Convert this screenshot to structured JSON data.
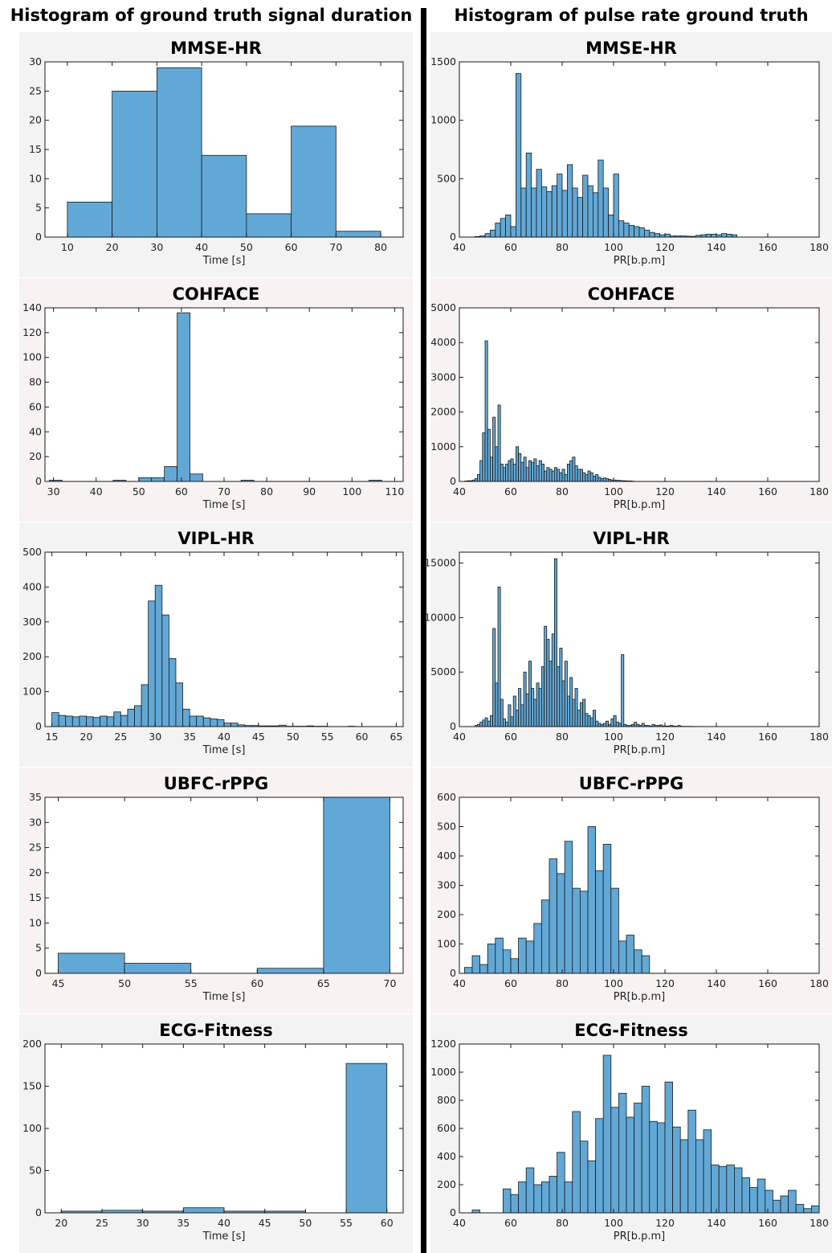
{
  "titles": {
    "left": "Histogram of ground truth signal duration",
    "right": "Histogram of pulse rate ground truth"
  },
  "colors": {
    "bar_fill": "#62a8d6",
    "bar_edge": "#1a1a1a",
    "axis": "#1a1a1a"
  },
  "chart_data": [
    {
      "type": "bar",
      "title": "MMSE-HR",
      "xlabel": "Time [s]",
      "ylabel": "",
      "xlim": [
        5,
        85
      ],
      "ylim": [
        0,
        30
      ],
      "xticks": [
        10,
        20,
        30,
        40,
        50,
        60,
        70,
        80
      ],
      "yticks": [
        0,
        5,
        10,
        15,
        20,
        25,
        30
      ],
      "bin_start": 10,
      "bin_width": 10,
      "values": [
        6,
        25,
        29,
        14,
        4,
        19,
        1
      ]
    },
    {
      "type": "bar",
      "title": "MMSE-HR",
      "xlabel": "PR[b.p.m]",
      "ylabel": "",
      "xlim": [
        40,
        180
      ],
      "ylim": [
        0,
        1500
      ],
      "xticks": [
        40,
        60,
        80,
        100,
        120,
        140,
        160,
        180
      ],
      "yticks": [
        0,
        500,
        1000,
        1500
      ],
      "bin_start": 46,
      "bin_width": 2,
      "values": [
        5,
        10,
        30,
        60,
        120,
        160,
        190,
        90,
        1400,
        420,
        720,
        420,
        580,
        430,
        390,
        440,
        540,
        400,
        620,
        420,
        340,
        530,
        440,
        380,
        660,
        420,
        190,
        540,
        140,
        120,
        100,
        90,
        80,
        60,
        40,
        30,
        20,
        25,
        10,
        10,
        10,
        8,
        6,
        15,
        20,
        25,
        25,
        20,
        30,
        25,
        20
      ]
    },
    {
      "type": "bar",
      "title": "COHFACE",
      "xlabel": "Time [s]",
      "ylabel": "",
      "xlim": [
        28,
        112
      ],
      "ylim": [
        0,
        140
      ],
      "xticks": [
        30,
        40,
        50,
        60,
        70,
        80,
        90,
        100,
        110
      ],
      "yticks": [
        0,
        20,
        40,
        60,
        80,
        100,
        120,
        140
      ],
      "bin_start": 29,
      "bin_width": 3,
      "values": [
        1,
        0,
        0,
        0,
        0,
        1,
        0,
        3,
        3,
        12,
        136,
        6,
        0,
        0,
        0,
        1,
        0,
        0,
        0,
        0,
        0,
        0,
        0,
        0,
        0,
        1
      ]
    },
    {
      "type": "bar",
      "title": "COHFACE",
      "xlabel": "PR[b.p.m]",
      "ylabel": "",
      "xlim": [
        40,
        180
      ],
      "ylim": [
        0,
        5000
      ],
      "xticks": [
        40,
        60,
        80,
        100,
        120,
        140,
        160,
        180
      ],
      "yticks": [
        0,
        1000,
        2000,
        3000,
        4000,
        5000
      ],
      "bin_start": 42,
      "bin_width": 1,
      "values": [
        10,
        20,
        20,
        40,
        80,
        200,
        600,
        1400,
        4050,
        1500,
        700,
        1850,
        1000,
        2200,
        500,
        400,
        500,
        600,
        650,
        500,
        1000,
        800,
        550,
        700,
        400,
        600,
        550,
        650,
        450,
        600,
        500,
        300,
        400,
        350,
        300,
        400,
        350,
        250,
        350,
        200,
        500,
        600,
        700,
        450,
        350,
        350,
        250,
        200,
        300,
        250,
        150,
        200,
        120,
        80,
        100,
        80,
        60,
        40,
        40,
        30,
        30,
        20,
        20,
        15,
        15,
        10
      ]
    },
    {
      "type": "bar",
      "title": "VIPL-HR",
      "xlabel": "Time [s]",
      "ylabel": "",
      "xlim": [
        14,
        66
      ],
      "ylim": [
        0,
        500
      ],
      "xticks": [
        15,
        20,
        25,
        30,
        35,
        40,
        45,
        50,
        55,
        60,
        65
      ],
      "yticks": [
        0,
        100,
        200,
        300,
        400,
        500
      ],
      "bin_start": 15,
      "bin_width": 1,
      "values": [
        40,
        32,
        30,
        28,
        30,
        28,
        26,
        30,
        28,
        42,
        32,
        50,
        60,
        120,
        360,
        405,
        320,
        195,
        125,
        50,
        30,
        30,
        25,
        22,
        20,
        10,
        10,
        5,
        3,
        3,
        2,
        2,
        2,
        4,
        1,
        1,
        1,
        2,
        1,
        1,
        0,
        0,
        0,
        1,
        0,
        0,
        0,
        0,
        0,
        0
      ]
    },
    {
      "type": "bar",
      "title": "VIPL-HR",
      "xlabel": "PR[b.p.m]",
      "ylabel": "",
      "xlim": [
        40,
        180
      ],
      "ylim": [
        0,
        16000
      ],
      "xticks": [
        40,
        60,
        80,
        100,
        120,
        140,
        160,
        180
      ],
      "yticks": [
        0,
        5000,
        10000,
        15000
      ],
      "bin_start": 46,
      "bin_width": 1,
      "values": [
        100,
        200,
        400,
        600,
        800,
        500,
        1000,
        9000,
        4000,
        12800,
        2500,
        700,
        400,
        2000,
        900,
        2800,
        1500,
        3500,
        2000,
        5000,
        3000,
        6000,
        3500,
        2500,
        4000,
        3500,
        5500,
        9200,
        8000,
        6000,
        8500,
        15400,
        5500,
        7200,
        4200,
        6000,
        2800,
        4500,
        2500,
        3500,
        1500,
        2200,
        2500,
        1200,
        1000,
        800,
        1500,
        500,
        300,
        200,
        300,
        500,
        200,
        700,
        1000,
        400,
        300,
        6600,
        200,
        100,
        100,
        200,
        400,
        200,
        100,
        300,
        100,
        100,
        50,
        200,
        100,
        100,
        150,
        50,
        50,
        50,
        100,
        50,
        30,
        100,
        30,
        20,
        20,
        20,
        20,
        10,
        10,
        10,
        10
      ]
    },
    {
      "type": "bar",
      "title": "UBFC-rPPG",
      "xlabel": "Time [s]",
      "ylabel": "",
      "xlim": [
        44,
        71
      ],
      "ylim": [
        0,
        35
      ],
      "xticks": [
        45,
        50,
        55,
        60,
        65,
        70
      ],
      "yticks": [
        0,
        5,
        10,
        15,
        20,
        25,
        30,
        35
      ],
      "bin_start": 45,
      "bin_width": 5,
      "values": [
        4,
        2,
        0,
        1,
        35
      ]
    },
    {
      "type": "bar",
      "title": "UBFC-rPPG",
      "xlabel": "PR[b.p.m]",
      "ylabel": "",
      "xlim": [
        40,
        180
      ],
      "ylim": [
        0,
        600
      ],
      "xticks": [
        40,
        60,
        80,
        100,
        120,
        140,
        160,
        180
      ],
      "yticks": [
        0,
        100,
        200,
        300,
        400,
        500,
        600
      ],
      "bin_start": 42,
      "bin_width": 3,
      "values": [
        20,
        60,
        30,
        100,
        120,
        80,
        50,
        120,
        110,
        170,
        250,
        390,
        340,
        450,
        290,
        280,
        500,
        350,
        440,
        290,
        110,
        130,
        80,
        60
      ]
    },
    {
      "type": "bar",
      "title": "ECG-Fitness",
      "xlabel": "Time [s]",
      "ylabel": "",
      "xlim": [
        18,
        62
      ],
      "ylim": [
        0,
        200
      ],
      "xticks": [
        20,
        25,
        30,
        35,
        40,
        45,
        50,
        55,
        60
      ],
      "yticks": [
        0,
        50,
        100,
        150,
        200
      ],
      "bin_start": 20,
      "bin_width": 5,
      "values": [
        2,
        3,
        2,
        6,
        2,
        2,
        0,
        177
      ]
    },
    {
      "type": "bar",
      "title": "ECG-Fitness",
      "xlabel": "PR[b.p.m]",
      "ylabel": "",
      "xlim": [
        40,
        180
      ],
      "ylim": [
        0,
        1200
      ],
      "xticks": [
        40,
        60,
        80,
        100,
        120,
        140,
        160,
        180
      ],
      "yticks": [
        0,
        200,
        400,
        600,
        800,
        1000,
        1200
      ],
      "bin_start": 42,
      "bin_width": 3,
      "values": [
        0,
        20,
        0,
        0,
        0,
        170,
        130,
        220,
        320,
        200,
        220,
        260,
        430,
        220,
        720,
        510,
        370,
        670,
        1120,
        750,
        850,
        680,
        780,
        900,
        650,
        640,
        930,
        610,
        520,
        730,
        520,
        590,
        340,
        330,
        340,
        320,
        250,
        180,
        240,
        160,
        90,
        120,
        160,
        60,
        30,
        50
      ]
    }
  ]
}
